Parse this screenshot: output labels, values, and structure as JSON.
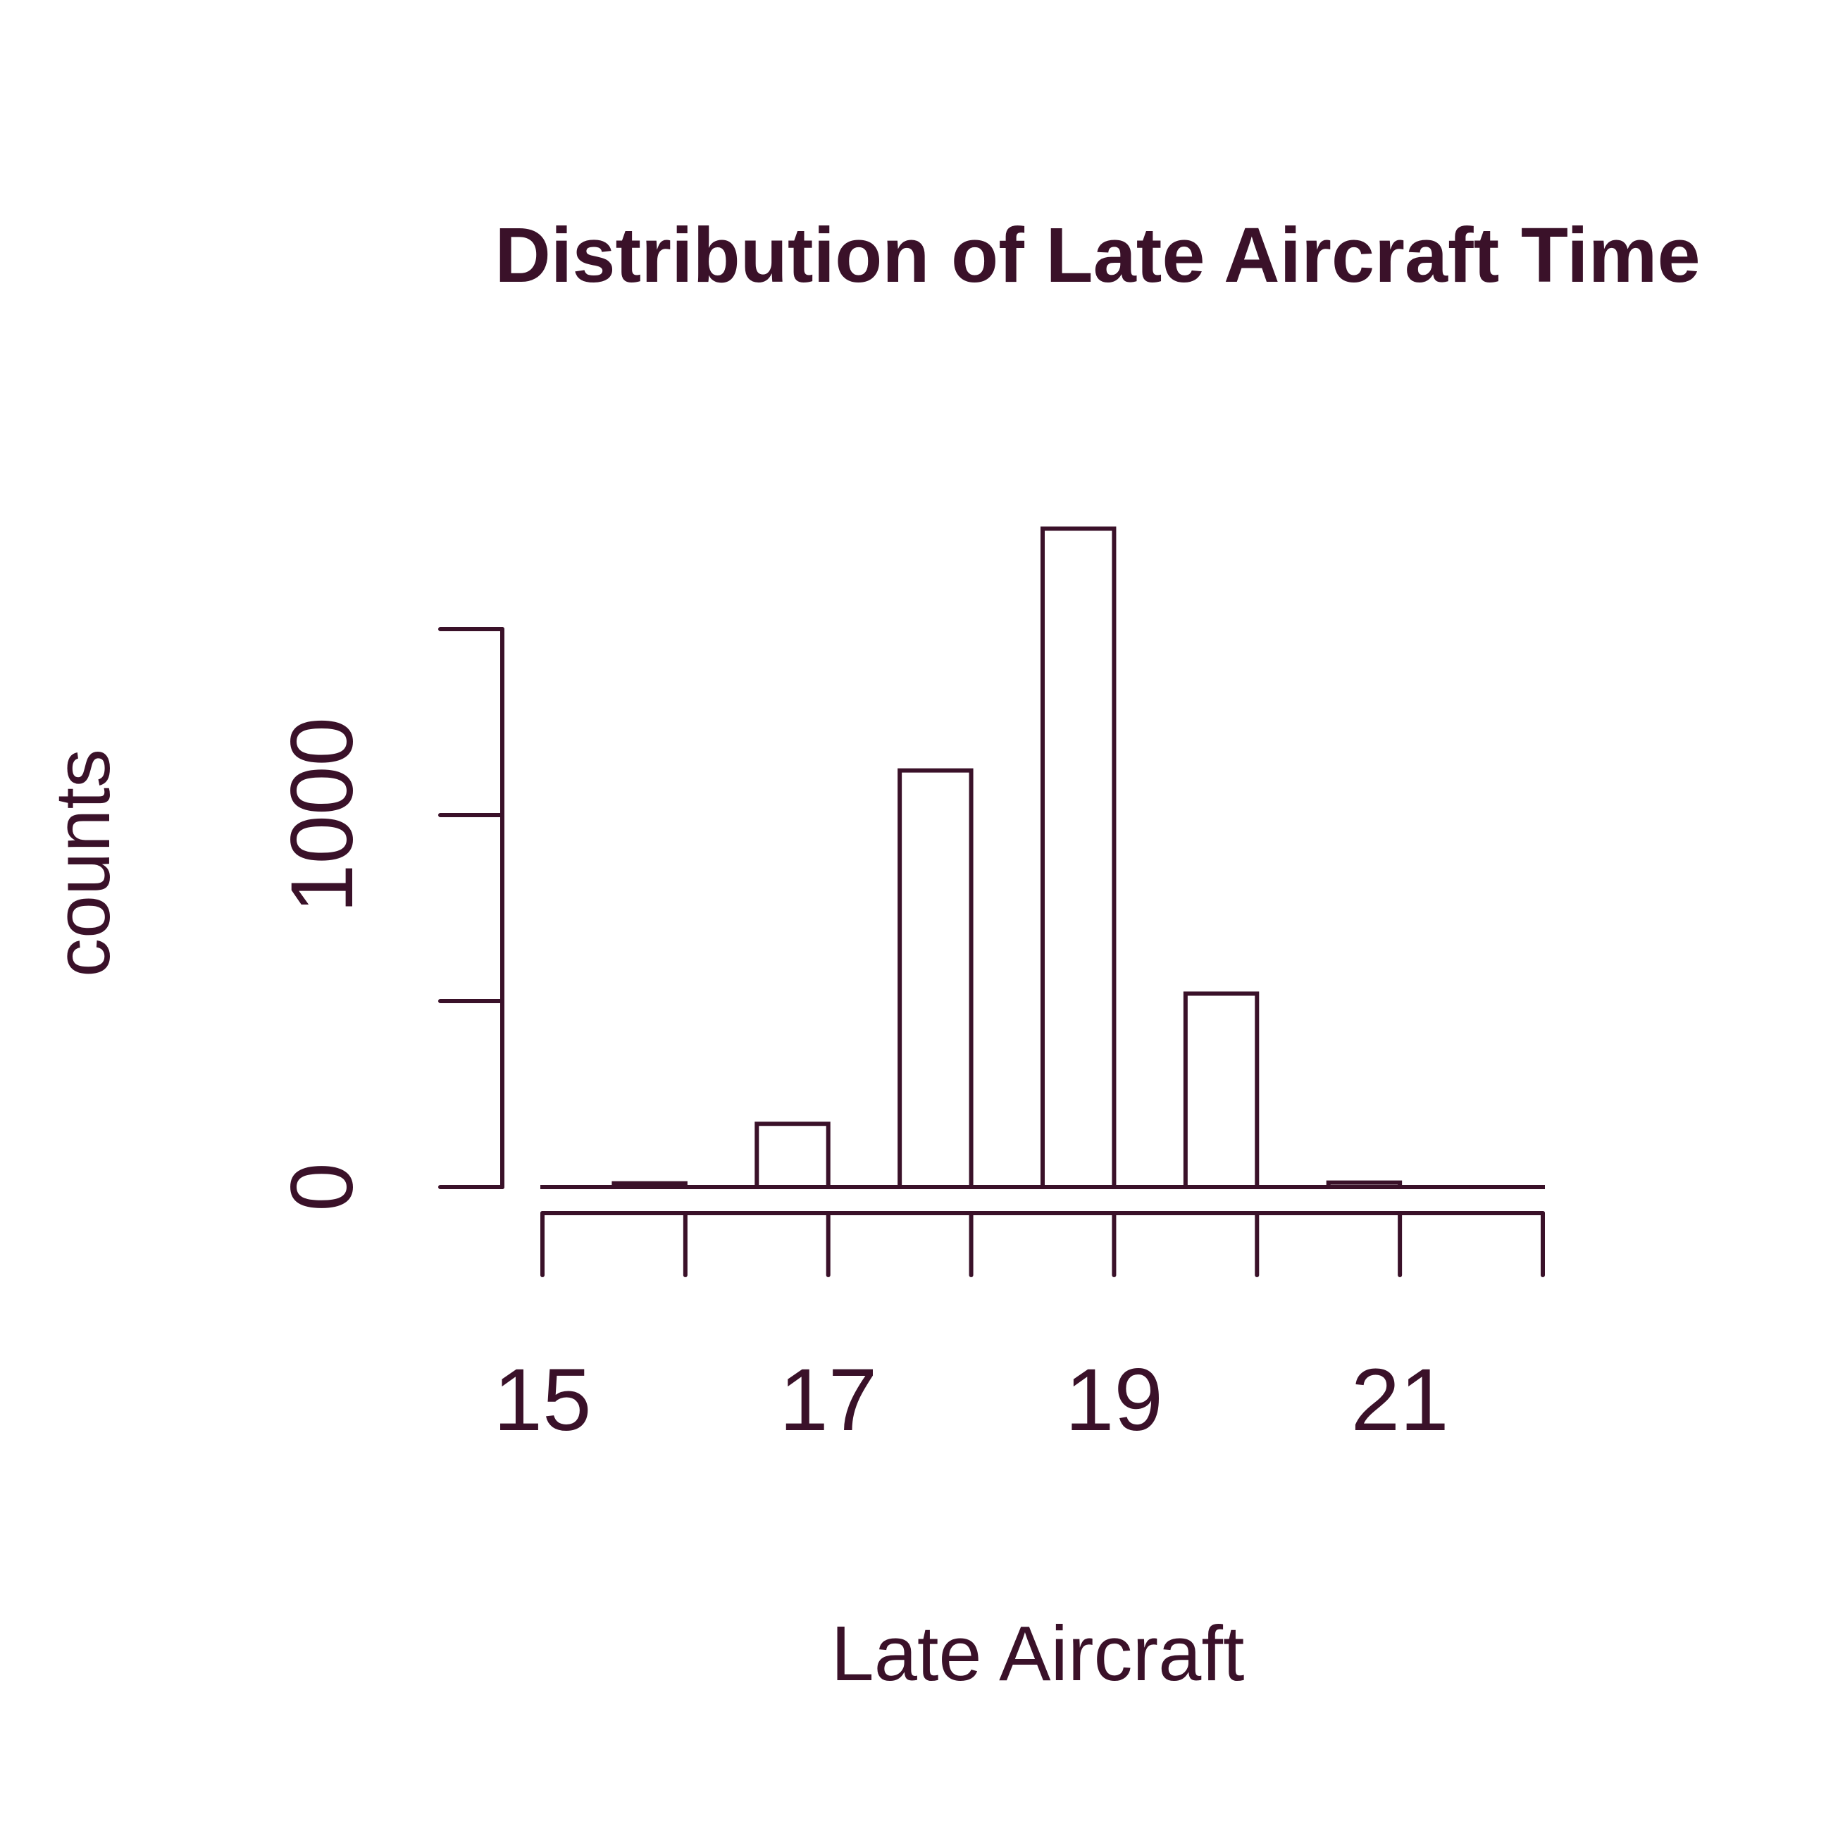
{
  "chart_data": {
    "type": "bar",
    "title": "Distribution of Late Aircraft Time",
    "xlabel": "Late Aircraft",
    "ylabel": "counts",
    "bin_edges": [
      15,
      15.5,
      16,
      16.5,
      17,
      17.5,
      18,
      18.5,
      19,
      19.5,
      20,
      20.5,
      21,
      21.5,
      22
    ],
    "counts": [
      0,
      10,
      0,
      170,
      0,
      1120,
      0,
      1770,
      0,
      520,
      0,
      12,
      0,
      0
    ],
    "xlim": [
      15,
      22
    ],
    "ylim": [
      0,
      1500
    ],
    "x_ticks": [
      15,
      16,
      17,
      18,
      19,
      20,
      21,
      22
    ],
    "x_tick_labels": [
      "15",
      "",
      "17",
      "",
      "19",
      "",
      "21",
      ""
    ],
    "y_ticks": [
      0,
      500,
      1000,
      1500
    ],
    "y_tick_labels": [
      "0",
      "",
      "1000",
      ""
    ],
    "grid": false,
    "legend": "none",
    "colors": {
      "ink": "#3a1129",
      "bar_fill": "#ffffff",
      "background": "#ffffff"
    }
  }
}
